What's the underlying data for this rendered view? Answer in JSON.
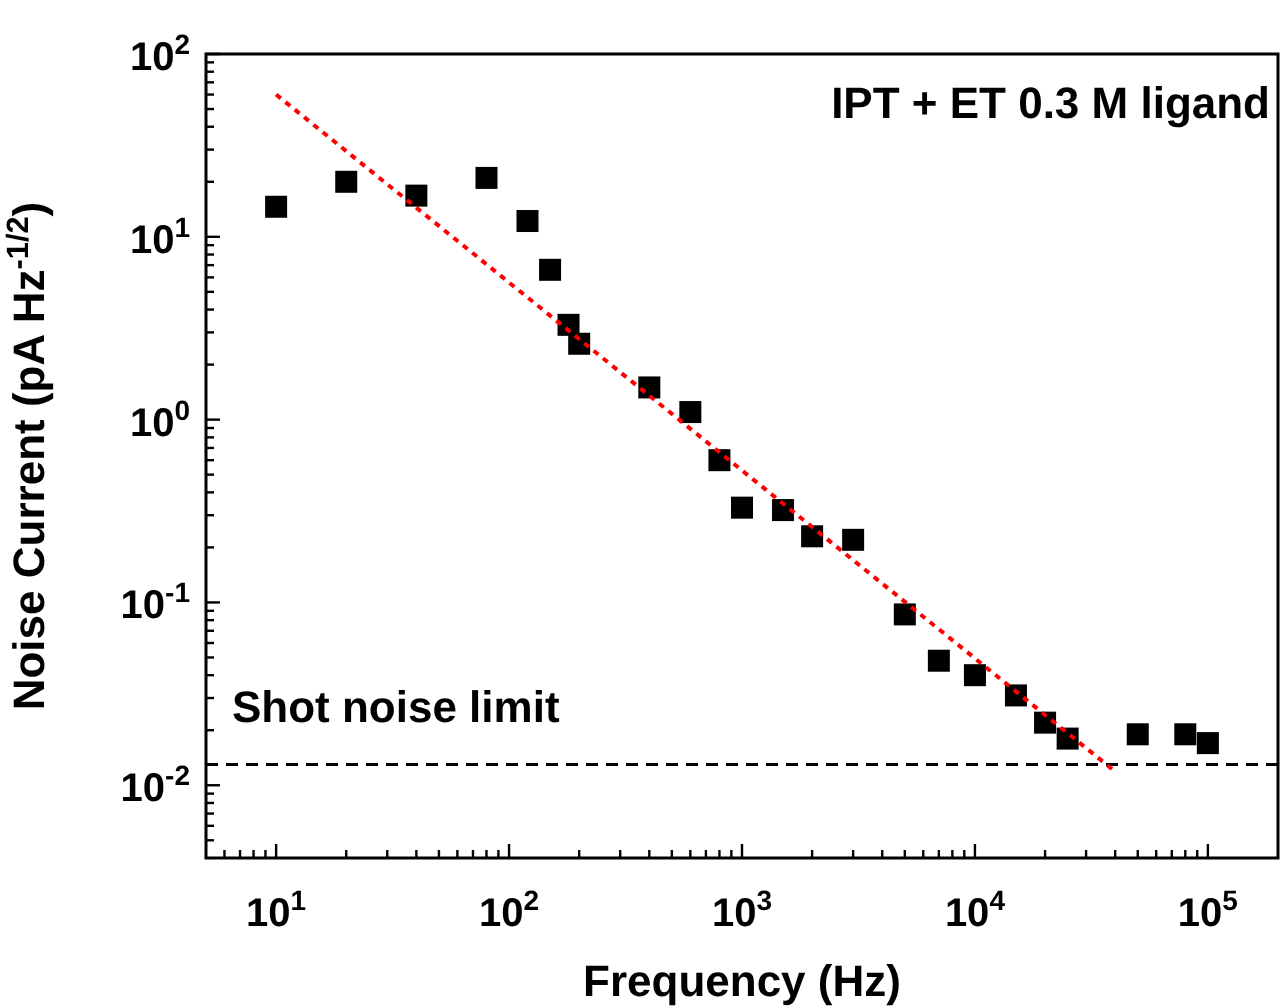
{
  "chart_data": {
    "type": "scatter",
    "xlabel": "Frequency (Hz)",
    "ylabel": "Noise Current (pA Hz$^{-1/2}$)",
    "log": "xy",
    "grid": false,
    "marker": "square",
    "xlim": [
      5,
      200000
    ],
    "ylim": [
      0.004,
      100
    ],
    "xticks": [
      {
        "value": 6,
        "label": null
      },
      {
        "value": 7,
        "label": null
      },
      {
        "value": 8,
        "label": null
      },
      {
        "value": 9,
        "label": null
      },
      {
        "value": 10,
        "label": "10$^{1}$"
      },
      {
        "value": 20,
        "label": null
      },
      {
        "value": 30,
        "label": null
      },
      {
        "value": 40,
        "label": null
      },
      {
        "value": 50,
        "label": null
      },
      {
        "value": 60,
        "label": null
      },
      {
        "value": 70,
        "label": null
      },
      {
        "value": 80,
        "label": null
      },
      {
        "value": 90,
        "label": null
      },
      {
        "value": 100,
        "label": "10$^{2}$"
      },
      {
        "value": 200,
        "label": null
      },
      {
        "value": 300,
        "label": null
      },
      {
        "value": 400,
        "label": null
      },
      {
        "value": 500,
        "label": null
      },
      {
        "value": 600,
        "label": null
      },
      {
        "value": 700,
        "label": null
      },
      {
        "value": 800,
        "label": null
      },
      {
        "value": 900,
        "label": null
      },
      {
        "value": 1000,
        "label": "10$^{3}$"
      },
      {
        "value": 2000,
        "label": null
      },
      {
        "value": 3000,
        "label": null
      },
      {
        "value": 4000,
        "label": null
      },
      {
        "value": 5000,
        "label": null
      },
      {
        "value": 6000,
        "label": null
      },
      {
        "value": 7000,
        "label": null
      },
      {
        "value": 8000,
        "label": null
      },
      {
        "value": 9000,
        "label": null
      },
      {
        "value": 10000,
        "label": "10$^{4}$"
      },
      {
        "value": 20000,
        "label": null
      },
      {
        "value": 30000,
        "label": null
      },
      {
        "value": 40000,
        "label": null
      },
      {
        "value": 50000,
        "label": null
      },
      {
        "value": 60000,
        "label": null
      },
      {
        "value": 70000,
        "label": null
      },
      {
        "value": 80000,
        "label": null
      },
      {
        "value": 90000,
        "label": null
      },
      {
        "value": 100000,
        "label": "10$^{5}$"
      }
    ],
    "yticks": [
      {
        "value": 0.005,
        "label": null
      },
      {
        "value": 0.006,
        "label": null
      },
      {
        "value": 0.007,
        "label": null
      },
      {
        "value": 0.008,
        "label": null
      },
      {
        "value": 0.009,
        "label": null
      },
      {
        "value": 0.01,
        "label": "10$^{-2}$"
      },
      {
        "value": 0.02,
        "label": null
      },
      {
        "value": 0.03,
        "label": null
      },
      {
        "value": 0.04,
        "label": null
      },
      {
        "value": 0.05,
        "label": null
      },
      {
        "value": 0.06,
        "label": null
      },
      {
        "value": 0.07,
        "label": null
      },
      {
        "value": 0.08,
        "label": null
      },
      {
        "value": 0.09,
        "label": null
      },
      {
        "value": 0.1,
        "label": "10$^{-1}$"
      },
      {
        "value": 0.2,
        "label": null
      },
      {
        "value": 0.3,
        "label": null
      },
      {
        "value": 0.4,
        "label": null
      },
      {
        "value": 0.5,
        "label": null
      },
      {
        "value": 0.6,
        "label": null
      },
      {
        "value": 0.7,
        "label": null
      },
      {
        "value": 0.8,
        "label": null
      },
      {
        "value": 0.9,
        "label": null
      },
      {
        "value": 1,
        "label": "10$^{0}$"
      },
      {
        "value": 2,
        "label": null
      },
      {
        "value": 3,
        "label": null
      },
      {
        "value": 4,
        "label": null
      },
      {
        "value": 5,
        "label": null
      },
      {
        "value": 6,
        "label": null
      },
      {
        "value": 7,
        "label": null
      },
      {
        "value": 8,
        "label": null
      },
      {
        "value": 9,
        "label": null
      },
      {
        "value": 10,
        "label": "10$^{1}$"
      },
      {
        "value": 20,
        "label": null
      },
      {
        "value": 30,
        "label": null
      },
      {
        "value": 40,
        "label": null
      },
      {
        "value": 50,
        "label": null
      },
      {
        "value": 60,
        "label": null
      },
      {
        "value": 70,
        "label": null
      },
      {
        "value": 80,
        "label": null
      },
      {
        "value": 90,
        "label": null
      },
      {
        "value": 100,
        "label": "10$^{2}$"
      }
    ],
    "series": [
      {
        "color": "#000000",
        "x": [
          10,
          20,
          40,
          80,
          120,
          150,
          180,
          200,
          400,
          600,
          800,
          1000,
          1500,
          2000,
          3000,
          5000,
          7000,
          10000,
          15000,
          20000,
          25000,
          50000,
          80000,
          100000
        ],
        "values": [
          14.6,
          20,
          16.8,
          21,
          12.2,
          6.6,
          3.3,
          2.6,
          1.5,
          1.1,
          0.6,
          0.33,
          0.32,
          0.23,
          0.22,
          0.086,
          0.048,
          0.04,
          0.031,
          0.022,
          0.018,
          0.019,
          0.019,
          0.017
        ]
      },
      {
        "type": "line",
        "color": "#ff0000",
        "marker": "none",
        "line_style": "dotted",
        "x": [
          10,
          39000
        ],
        "values": [
          60,
          0.0122
        ]
      }
    ],
    "ref_lines": [
      {
        "axis": "y",
        "value": 0.013,
        "label": "Shot noise limit",
        "color": "#000000",
        "line_style": "dashed"
      }
    ],
    "annotations": [
      "IPT + ET 0.3 M ligand"
    ]
  }
}
